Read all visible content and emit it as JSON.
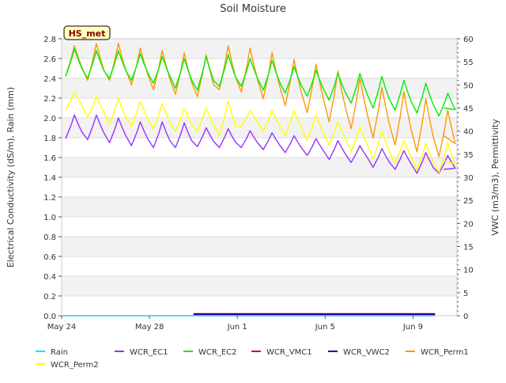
{
  "chart_data": {
    "type": "line",
    "title": "Soil Moisture",
    "station_badge": "HS_met",
    "ylabel_left": "Electrical Conductivity (dS/m), Rain (mm)",
    "ylabel_right": "VWC (m3/m3), Permittivity",
    "ylim_left": [
      0.0,
      2.8
    ],
    "ylim_right": [
      0,
      60
    ],
    "left_ticks": [
      "0.0",
      "0.2",
      "0.4",
      "0.6",
      "0.8",
      "1.0",
      "1.2",
      "1.4",
      "1.6",
      "1.8",
      "2.0",
      "2.2",
      "2.4",
      "2.6",
      "2.8"
    ],
    "right_ticks": [
      "0",
      "5",
      "10",
      "15",
      "20",
      "25",
      "30",
      "35",
      "40",
      "45",
      "50",
      "55",
      "60"
    ],
    "x_ticks": [
      "May 24",
      "May 28",
      "Jun 1",
      "Jun 5",
      "Jun 9"
    ],
    "x_start": "2024-05-24",
    "x_end": "2024-06-11",
    "grid": true,
    "legend_position": "bottom",
    "series": [
      {
        "name": "Rain",
        "axis": "left",
        "color": "#00e5ee",
        "points": [
          [
            "May 24",
            0.0
          ],
          [
            "May 29",
            0.0
          ],
          [
            "Jun 10",
            0.0
          ]
        ]
      },
      {
        "name": "WCR_Perm2",
        "axis": "right",
        "color": "#ffff00",
        "daily_peaks": [
          48.5,
          47.5,
          47.0,
          46.5,
          46.0,
          45.0,
          45.0,
          46.5,
          44.5,
          44.5,
          44.5,
          43.5,
          42.0,
          41.0,
          40.0,
          38.0,
          37.5,
          37.5
        ],
        "daily_troughs": [
          44.5,
          43.0,
          41.5,
          41.0,
          40.5,
          40.0,
          40.0,
          39.0,
          41.0,
          40.0,
          39.0,
          38.0,
          37.0,
          35.5,
          34.0,
          33.0,
          31.5,
          31.0
        ],
        "last": [
          "Jun 10",
          33.5
        ]
      },
      {
        "name": "WCR_EC1",
        "axis": "left",
        "color": "#9b30ff",
        "daily_peaks": [
          2.03,
          2.03,
          2.0,
          1.96,
          1.96,
          1.95,
          1.9,
          1.89,
          1.87,
          1.85,
          1.82,
          1.79,
          1.77,
          1.72,
          1.69,
          1.67,
          1.65,
          1.62
        ],
        "daily_troughs": [
          1.79,
          1.78,
          1.75,
          1.72,
          1.7,
          1.7,
          1.71,
          1.7,
          1.7,
          1.68,
          1.65,
          1.62,
          1.58,
          1.55,
          1.5,
          1.48,
          1.44,
          1.44
        ],
        "last": [
          "Jun 10",
          1.48
        ]
      },
      {
        "name": "WCR_EC2",
        "axis": "left",
        "color": "#00ee00",
        "daily_peaks": [
          2.7,
          2.68,
          2.68,
          2.65,
          2.62,
          2.6,
          2.62,
          2.64,
          2.6,
          2.58,
          2.52,
          2.48,
          2.45,
          2.45,
          2.42,
          2.38,
          2.35,
          2.25
        ],
        "daily_troughs": [
          2.42,
          2.4,
          2.4,
          2.38,
          2.35,
          2.3,
          2.28,
          2.32,
          2.32,
          2.28,
          2.25,
          2.22,
          2.18,
          2.15,
          2.1,
          2.08,
          2.05,
          2.02
        ],
        "last": [
          "Jun 10",
          2.1
        ]
      },
      {
        "name": "WCR_VMC1",
        "axis": "right",
        "color": "#cc0000",
        "points": [
          [
            "May 30",
            0.3
          ],
          [
            "Jun 10",
            0.3
          ]
        ]
      },
      {
        "name": "WCR_VWC2",
        "axis": "right",
        "color": "#0000cd",
        "points": [
          [
            "May 30",
            0.4
          ],
          [
            "Jun 10",
            0.4
          ]
        ]
      },
      {
        "name": "WCR_Perm1",
        "axis": "right",
        "color": "#ff9900",
        "daily_peaks": [
          58.5,
          59.0,
          59.0,
          58.0,
          57.5,
          57.0,
          56.5,
          58.5,
          58.0,
          57.0,
          55.5,
          54.5,
          53.0,
          51.5,
          49.5,
          48.5,
          47.0,
          44.5
        ],
        "daily_troughs": [
          52.0,
          51.0,
          51.0,
          50.0,
          49.0,
          48.0,
          47.5,
          49.0,
          48.5,
          47.0,
          45.5,
          44.0,
          42.0,
          40.5,
          38.5,
          37.0,
          35.5,
          34.5
        ],
        "last": [
          "Jun 10",
          39.0
        ]
      }
    ],
    "legend_rows": [
      [
        "Rain",
        "WCR_EC1",
        "WCR_EC2",
        "WCR_VMC1",
        "WCR_VWC2",
        "WCR_Perm1"
      ],
      [
        "WCR_Perm2"
      ]
    ]
  }
}
